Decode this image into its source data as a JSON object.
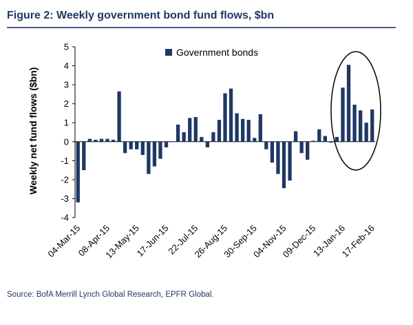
{
  "figure_title": "Figure 2: Weekly government bond fund flows, $bn",
  "source": "Source: BofA Merrill Lynch Global Research, EPFR Global.",
  "colors": {
    "bar": "#1f3864",
    "title": "#1f3864",
    "rule": "#4a5f82",
    "axis": "#000000"
  },
  "chart_data": {
    "type": "bar",
    "ylabel": "Weekly net fund flows ($bn)",
    "xlabel": "",
    "ylim": [
      -4,
      5
    ],
    "y_ticks": [
      -4,
      -3,
      -2,
      -1,
      0,
      1,
      2,
      3,
      4,
      5
    ],
    "x_tick_labels": [
      "04-Mar-15",
      "08-Apr-15",
      "13-May-15",
      "17-Jun-15",
      "22-Jul-15",
      "26-Aug-15",
      "30-Sep-15",
      "04-Nov-15",
      "09-Dec-15",
      "13-Jan-16",
      "17-Feb-16"
    ],
    "x_tick_indices": [
      0,
      5,
      10,
      15,
      20,
      25,
      30,
      35,
      40,
      45,
      50
    ],
    "legend": {
      "label": "Government bonds",
      "position": "top"
    },
    "annotation": "ellipse around the most recent weeks (13-Jan-16 to 17-Feb-16)",
    "series": [
      {
        "name": "Government bonds",
        "values": [
          -3.2,
          -1.5,
          0.15,
          0.1,
          0.15,
          0.15,
          0.1,
          2.65,
          -0.6,
          -0.4,
          -0.4,
          -0.7,
          -1.7,
          -1.3,
          -0.9,
          -0.3,
          0.0,
          0.9,
          0.5,
          1.25,
          1.3,
          0.25,
          -0.3,
          0.5,
          1.15,
          2.55,
          2.8,
          1.5,
          1.2,
          1.15,
          0.2,
          1.45,
          -0.4,
          -1.1,
          -1.7,
          -2.45,
          -2.05,
          0.55,
          -0.6,
          -0.95,
          0.05,
          0.65,
          0.3,
          -0.05,
          0.25,
          2.85,
          4.05,
          1.95,
          1.65,
          1.0,
          1.7
        ]
      }
    ]
  }
}
